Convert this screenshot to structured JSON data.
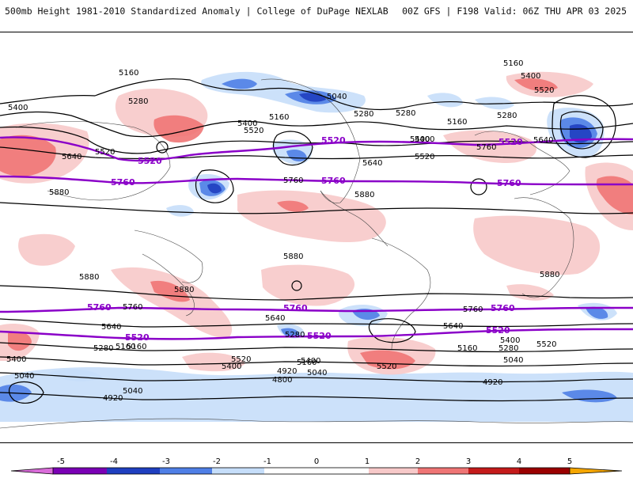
{
  "header": {
    "title": "500mb Height 1981-2010 Standardized Anomaly | College of DuPage NEXLAB",
    "run_info": "00Z GFS | F198 Valid: 06Z THU APR 03 2025"
  },
  "colors": {
    "neg5": "#d96cd9",
    "neg4": "#7a00b5",
    "neg3": "#1f3fc0",
    "neg2": "#4f7fe6",
    "neg1": "#c6defa",
    "zero": "#ffffff",
    "pos1": "#f7c9c9",
    "pos2": "#ef7575",
    "pos3": "#c41a1a",
    "pos4": "#9a0000",
    "pos5": "#f5a600",
    "contour": "#000000",
    "highlight_contour": "#8a00c8",
    "coastline": "#333333"
  },
  "colorbar": {
    "ticks": [
      "-5",
      "-4",
      "-3",
      "-2",
      "-1",
      "0",
      "1",
      "2",
      "3",
      "4",
      "5"
    ]
  },
  "contour_labels": {
    "black": [
      "5400",
      "5160",
      "5280",
      "5400",
      "5520",
      "5640",
      "5520",
      "5880",
      "5160",
      "5040",
      "5280",
      "5160",
      "5400",
      "5640",
      "5400",
      "5520",
      "5880",
      "5760",
      "5160",
      "5400",
      "5280",
      "5520",
      "5640",
      "5760",
      "5880",
      "5880",
      "5880",
      "5880",
      "5760",
      "5640",
      "5280",
      "5160",
      "5040",
      "4920",
      "5160",
      "5400",
      "5520",
      "4920",
      "4800",
      "5040",
      "5040",
      "5160",
      "5280",
      "5400",
      "5520",
      "5640",
      "5760",
      "5040",
      "4920",
      "5160",
      "5400",
      "5280",
      "5520",
      "5640",
      "5280",
      "5400"
    ],
    "highlight": [
      "5520",
      "5520",
      "5760",
      "5520",
      "5760",
      "5760",
      "5760",
      "5760",
      "5520",
      "5520",
      "5760",
      "5520"
    ]
  }
}
